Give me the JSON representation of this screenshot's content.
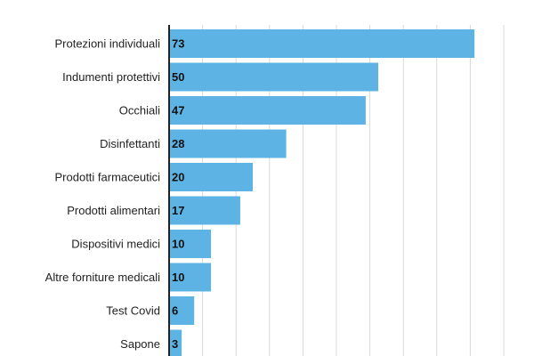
{
  "chart_data": {
    "type": "bar",
    "orientation": "horizontal",
    "title": "",
    "xlabel": "",
    "ylabel": "",
    "categories": [
      "Protezioni individuali",
      "Indumenti protettivi",
      "Occhiali",
      "Disinfettanti",
      "Prodotti farmaceutici",
      "Prodotti alimentari",
      "Dispositivi medici",
      "Altre forniture medicali",
      "Test Covid",
      "Sapone"
    ],
    "values": [
      73,
      50,
      47,
      28,
      20,
      17,
      10,
      10,
      6,
      3
    ],
    "xlim": [
      0,
      80
    ],
    "grid": true,
    "bar_color": "#5db4e4",
    "data_labels": true
  }
}
